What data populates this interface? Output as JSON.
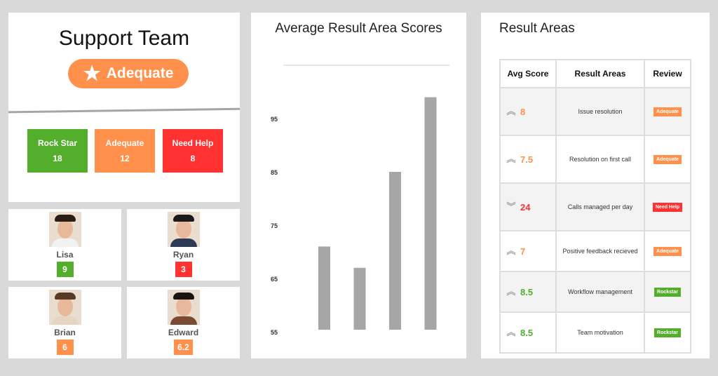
{
  "summary": {
    "title": "Support Team",
    "rating": "Adequate",
    "rating_icon": "star-icon",
    "stats": [
      {
        "label": "Rock Star",
        "value": "18",
        "color": "#52ae2b"
      },
      {
        "label": "Adequate",
        "value": "12",
        "color": "#ff914d"
      },
      {
        "label": "Need Help",
        "value": "8",
        "color": "#ff3131"
      }
    ]
  },
  "people": [
    {
      "name": "Lisa",
      "score": "9",
      "color": "#52ae2b"
    },
    {
      "name": "Ryan",
      "score": "3",
      "color": "#ff3131"
    },
    {
      "name": "Brian",
      "score": "6",
      "color": "#ff914d"
    },
    {
      "name": "Edward",
      "score": "6.2",
      "color": "#ff914d"
    }
  ],
  "chart_data": {
    "type": "bar",
    "title": "Average Result Area Scores",
    "categories": [
      "",
      "",
      "",
      ""
    ],
    "values": [
      71,
      67,
      85,
      99
    ],
    "yticks": [
      "55",
      "65",
      "75",
      "85",
      "95"
    ],
    "ylim": [
      55,
      105
    ],
    "color": "#a6a6a6",
    "grid": true
  },
  "table": {
    "title": "Result Areas",
    "headers": [
      "Avg Score",
      "Result Areas",
      "Review"
    ],
    "rows": [
      {
        "trend": "up",
        "score": "8",
        "area": "Issue resolution",
        "review": "Adequate",
        "color": "#ff914d"
      },
      {
        "trend": "up",
        "score": "7.5",
        "area": "Resolution on first call",
        "review": "Adequate",
        "color": "#ff914d"
      },
      {
        "trend": "down",
        "score": "24",
        "area": "Calls managed per day",
        "review": "Need Help",
        "color": "#ff3131"
      },
      {
        "trend": "up",
        "score": "7",
        "area": "Positive feedback recieved",
        "review": "Adequate",
        "color": "#ff914d"
      },
      {
        "trend": "up",
        "score": "8.5",
        "area": "Workflow management",
        "review": "Rockstar",
        "color": "#52ae2b"
      },
      {
        "trend": "up",
        "score": "8.5",
        "area": "Team motivation",
        "review": "Rockstar",
        "color": "#52ae2b"
      }
    ]
  }
}
